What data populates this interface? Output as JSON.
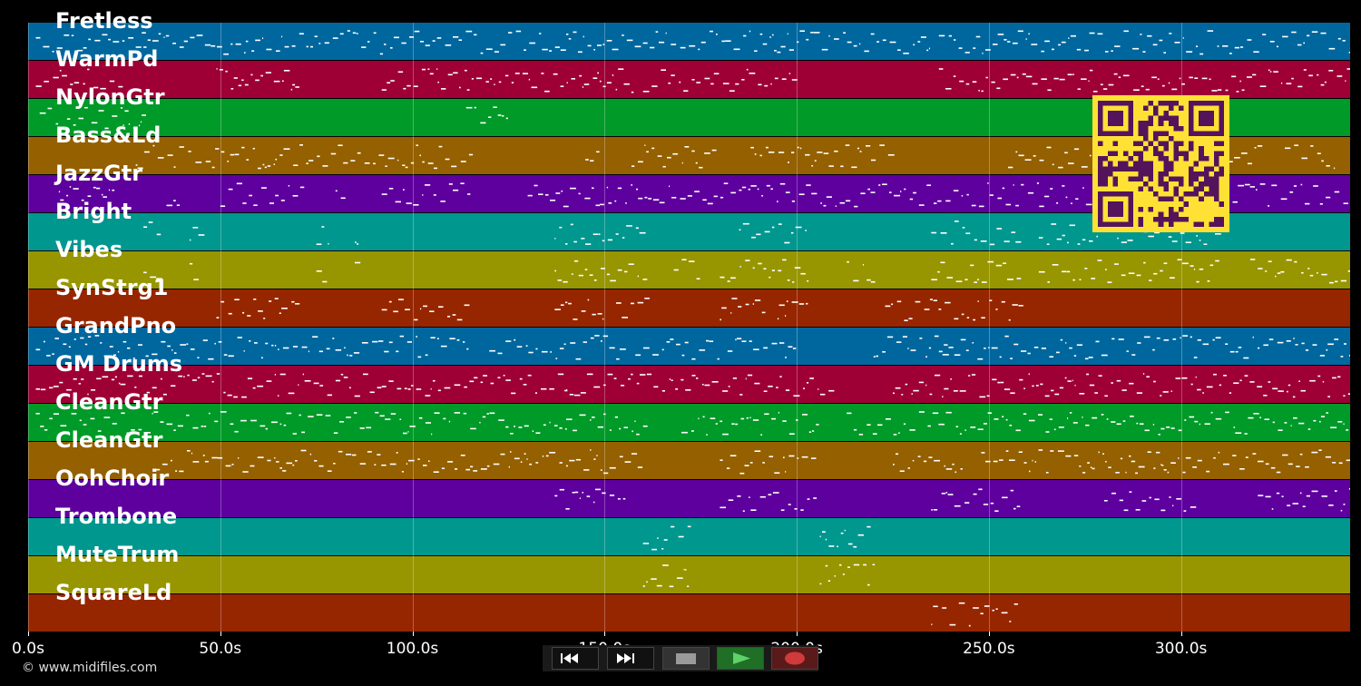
{
  "tracks": [
    {
      "label": "Fretless",
      "color": "#00679e"
    },
    {
      "label": "WarmPd",
      "color": "#9e0035"
    },
    {
      "label": "NylonGtr",
      "color": "#009a28"
    },
    {
      "label": "Bass&Ld",
      "color": "#946000"
    },
    {
      "label": "JazzGtr",
      "color": "#5e009e"
    },
    {
      "label": "Bright",
      "color": "#00978f"
    },
    {
      "label": "Vibes",
      "color": "#979600"
    },
    {
      "label": "SynStrg1",
      "color": "#962600"
    },
    {
      "label": "GrandPno",
      "color": "#00679e"
    },
    {
      "label": "GM Drums",
      "color": "#9e0035"
    },
    {
      "label": "CleanGtr",
      "color": "#009a28"
    },
    {
      "label": "CleanGtr",
      "color": "#946000"
    },
    {
      "label": "OohChoir",
      "color": "#5e009e"
    },
    {
      "label": "Trombone",
      "color": "#00978f"
    },
    {
      "label": "MuteTrum",
      "color": "#979600"
    },
    {
      "label": "SquareLd",
      "color": "#962600"
    }
  ],
  "timeline": {
    "max_seconds": 344,
    "ticks": [
      "0.0s",
      "50.0s",
      "100.0s",
      "150.0s",
      "200.0s",
      "250.0s",
      "300.0s"
    ],
    "tick_values": [
      0,
      50,
      100,
      150,
      200,
      250,
      300
    ]
  },
  "copyright": "© www.midifiles.com",
  "controls": {
    "rewind": "rewind-icon",
    "fast_forward": "fast-forward-icon",
    "stop": "stop-icon",
    "play": "play-icon",
    "record": "record-icon"
  },
  "colors": {
    "background": "#000000",
    "note": "#ffffff",
    "qr_bg": "#ffe135",
    "qr_fg": "#54145c"
  }
}
